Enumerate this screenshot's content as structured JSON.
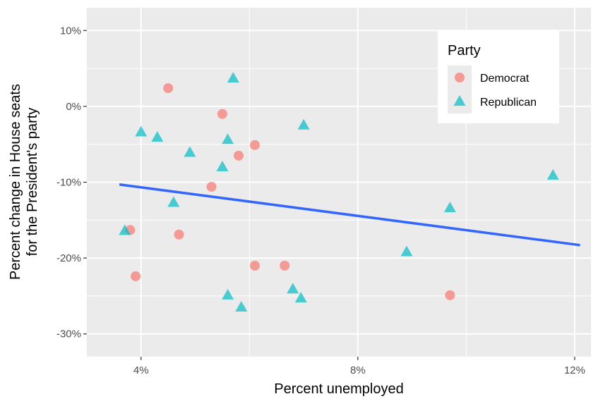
{
  "chart_data": {
    "type": "scatter",
    "xlabel": "Percent unemployed",
    "ylabel_line1": "Percent change in House seats",
    "ylabel_line2": "for the President's party",
    "xlim": [
      3.0,
      12.3
    ],
    "ylim": [
      -33.0,
      13.0
    ],
    "x_ticks": [
      4,
      8,
      12
    ],
    "x_tick_labels": [
      "4%",
      "8%",
      "12%"
    ],
    "y_ticks": [
      10,
      0,
      -10,
      -20,
      -30
    ],
    "y_tick_labels": [
      "10%",
      "0%",
      "-10%",
      "-20%",
      "-30%"
    ],
    "grid": true,
    "panel_background": "#ebebeb",
    "legend": {
      "title": "Party",
      "position": "top-right",
      "entries": [
        {
          "label": "Democrat",
          "shape": "circle",
          "color": "#f8766d"
        },
        {
          "label": "Republican",
          "shape": "triangle",
          "color": "#00bfc4"
        }
      ]
    },
    "series": [
      {
        "name": "Democrat",
        "shape": "circle",
        "color": "#f8766d",
        "points": [
          {
            "x": 4.5,
            "y": 2.4
          },
          {
            "x": 5.5,
            "y": -1.0
          },
          {
            "x": 6.1,
            "y": -5.1
          },
          {
            "x": 5.8,
            "y": -6.5
          },
          {
            "x": 5.3,
            "y": -10.6
          },
          {
            "x": 3.8,
            "y": -16.3
          },
          {
            "x": 4.7,
            "y": -16.9
          },
          {
            "x": 3.9,
            "y": -22.4
          },
          {
            "x": 6.1,
            "y": -21.0
          },
          {
            "x": 6.65,
            "y": -21.0
          },
          {
            "x": 9.7,
            "y": -24.9
          }
        ]
      },
      {
        "name": "Republican",
        "shape": "triangle",
        "color": "#00bfc4",
        "points": [
          {
            "x": 5.7,
            "y": 3.7
          },
          {
            "x": 7.0,
            "y": -2.5
          },
          {
            "x": 4.0,
            "y": -3.4
          },
          {
            "x": 4.3,
            "y": -4.1
          },
          {
            "x": 5.6,
            "y": -4.4
          },
          {
            "x": 4.9,
            "y": -6.1
          },
          {
            "x": 5.5,
            "y": -8.0
          },
          {
            "x": 11.6,
            "y": -9.1
          },
          {
            "x": 4.6,
            "y": -12.7
          },
          {
            "x": 9.7,
            "y": -13.4
          },
          {
            "x": 3.7,
            "y": -16.4
          },
          {
            "x": 8.9,
            "y": -19.2
          },
          {
            "x": 6.8,
            "y": -24.1
          },
          {
            "x": 5.6,
            "y": -24.9
          },
          {
            "x": 6.95,
            "y": -25.3
          },
          {
            "x": 5.85,
            "y": -26.5
          }
        ]
      }
    ],
    "trend_line": {
      "color": "#3366ff",
      "x": [
        3.6,
        12.1
      ],
      "y": [
        -10.3,
        -18.3
      ]
    }
  }
}
